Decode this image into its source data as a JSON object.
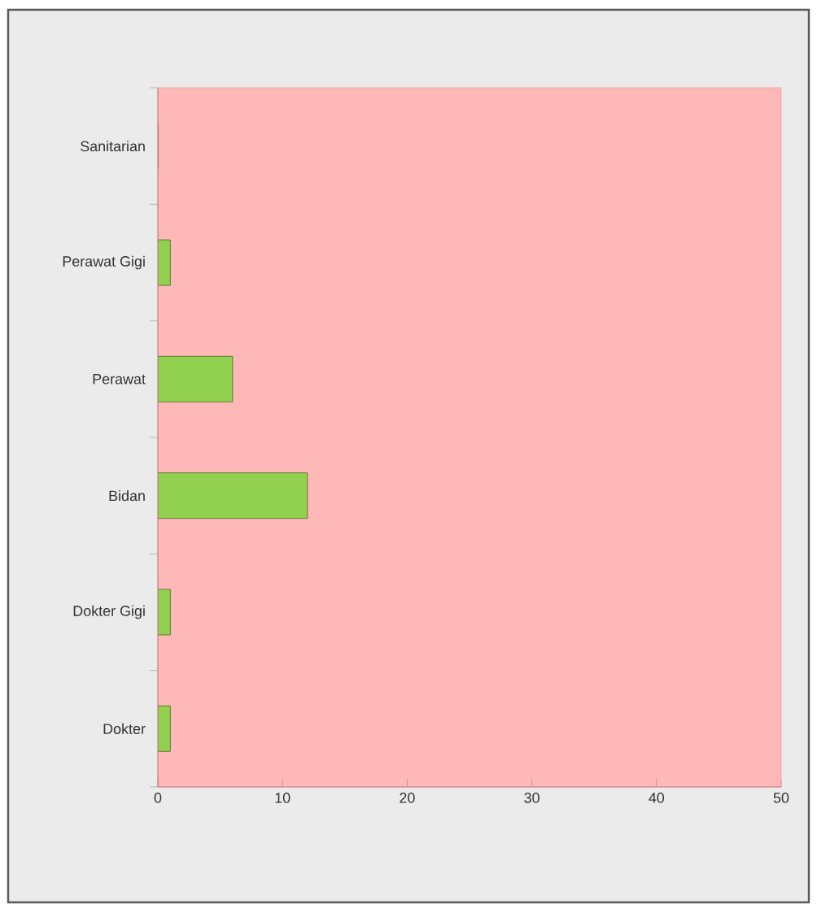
{
  "chart_data": {
    "type": "bar",
    "orientation": "horizontal",
    "categories": [
      "Sanitarian",
      "Perawat Gigi",
      "Perawat",
      "Bidan",
      "Dokter Gigi",
      "Dokter"
    ],
    "values": [
      0,
      1,
      6,
      12,
      1,
      1
    ],
    "color": "#92d050",
    "xlim": [
      0,
      50
    ],
    "xticks": [
      0,
      10,
      20,
      30,
      40,
      50
    ],
    "grid": false
  }
}
